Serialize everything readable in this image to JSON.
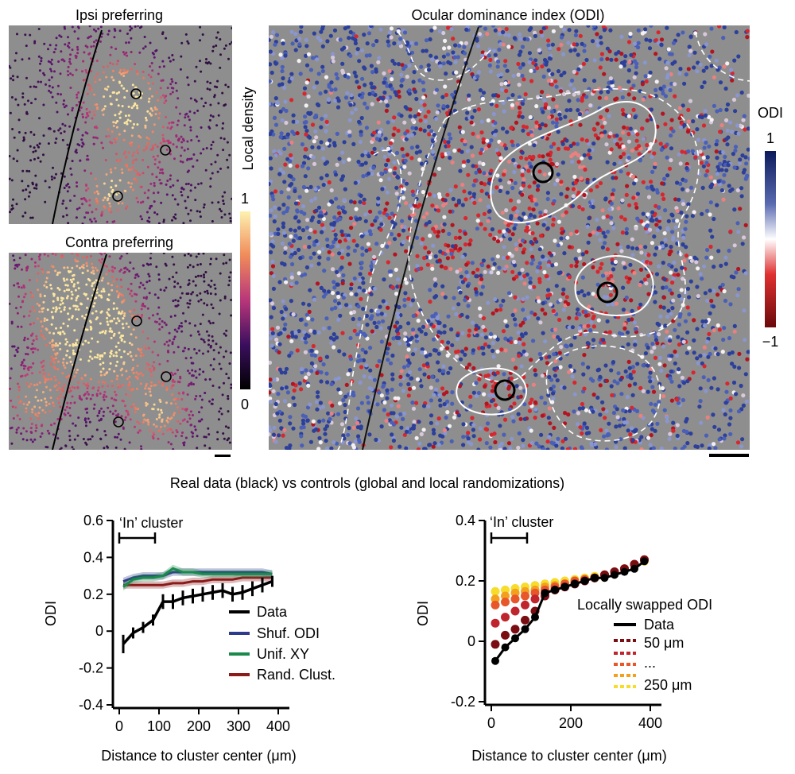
{
  "titles": {
    "ipsi": "Ipsi preferring",
    "contra": "Contra preferring",
    "odi_map": "Ocular dominance index (ODI)",
    "density_label": "Local density",
    "odi_label": "ODI",
    "density_max": "1",
    "density_min": "0",
    "odi_max": "1",
    "odi_min": "−1",
    "bottom_title": "Real data (black) vs controls (global and local randomizations)"
  },
  "colors": {
    "background_map": "#8e8e8e",
    "data": "#000000",
    "shuf_odi": "#2e3a8c",
    "unif_xy": "#1a8a4a",
    "rand_clust": "#8b1a1a",
    "swap_series": [
      "#7a0d12",
      "#c0242c",
      "#e8572a",
      "#f4a01f",
      "#f7dc2a"
    ]
  },
  "chart_data": [
    {
      "type": "line",
      "xlabel": "Distance to cluster center (μm)",
      "ylabel": "ODI",
      "xlim": [
        0,
        400
      ],
      "ylim": [
        -0.4,
        0.6
      ],
      "xticks": [
        "0",
        "100",
        "200",
        "300",
        "400"
      ],
      "yticks": [
        "-0.4",
        "-0.2",
        "0",
        "0.2",
        "0.4",
        "0.6"
      ],
      "annotation": "‘In’ cluster",
      "in_cluster_range": [
        0,
        90
      ],
      "legend_position": "bottom-right",
      "x": [
        10,
        35,
        60,
        85,
        110,
        135,
        160,
        185,
        210,
        235,
        260,
        285,
        310,
        335,
        360,
        385
      ],
      "series": [
        {
          "name": "Data",
          "values": [
            -0.07,
            -0.01,
            0.02,
            0.06,
            0.16,
            0.16,
            0.18,
            0.19,
            0.2,
            0.21,
            0.22,
            0.2,
            0.21,
            0.23,
            0.25,
            0.27
          ],
          "err": [
            0.05,
            0.03,
            0.03,
            0.03,
            0.04,
            0.04,
            0.04,
            0.04,
            0.04,
            0.04,
            0.04,
            0.04,
            0.04,
            0.04,
            0.04,
            0.03
          ]
        },
        {
          "name": "Shuf. ODI",
          "values": [
            0.27,
            0.29,
            0.3,
            0.3,
            0.3,
            0.32,
            0.32,
            0.32,
            0.32,
            0.32,
            0.32,
            0.32,
            0.32,
            0.32,
            0.32,
            0.31
          ]
        },
        {
          "name": "Unif. XY",
          "values": [
            0.24,
            0.28,
            0.29,
            0.29,
            0.3,
            0.34,
            0.32,
            0.32,
            0.31,
            0.31,
            0.31,
            0.31,
            0.31,
            0.31,
            0.31,
            0.31
          ]
        },
        {
          "name": "Rand. Clust.",
          "values": [
            0.25,
            0.25,
            0.25,
            0.25,
            0.25,
            0.26,
            0.26,
            0.27,
            0.27,
            0.28,
            0.28,
            0.28,
            0.29,
            0.29,
            0.29,
            0.29
          ]
        }
      ]
    },
    {
      "type": "line",
      "xlabel": "Distance to cluster center (μm)",
      "ylabel": "ODI",
      "xlim": [
        0,
        400
      ],
      "ylim": [
        -0.2,
        0.4
      ],
      "xticks": [
        "0",
        "200",
        "400"
      ],
      "yticks": [
        "-0.2",
        "0",
        "0.2",
        "0.4"
      ],
      "annotation": "‘In’ cluster",
      "in_cluster_range": [
        0,
        90
      ],
      "legend_title": "Locally swapped ODI",
      "legend_entries": [
        "Data",
        "50 μm",
        "...",
        "250 μm"
      ],
      "legend_position": "right",
      "x": [
        10,
        35,
        60,
        85,
        110,
        135,
        160,
        185,
        210,
        235,
        260,
        285,
        310,
        335,
        360,
        385
      ],
      "series": [
        {
          "name": "Data",
          "values": [
            -0.065,
            -0.02,
            0.01,
            0.04,
            0.08,
            0.16,
            0.17,
            0.18,
            0.19,
            0.2,
            0.21,
            0.21,
            0.22,
            0.23,
            0.24,
            0.265
          ]
        },
        {
          "name": "50 μm",
          "values": [
            -0.01,
            0.02,
            0.04,
            0.07,
            0.1,
            0.15,
            0.17,
            0.18,
            0.19,
            0.2,
            0.21,
            0.22,
            0.23,
            0.24,
            0.255,
            0.27
          ]
        },
        {
          "values": [
            0.06,
            0.08,
            0.1,
            0.12,
            0.14,
            0.16,
            0.17,
            0.18,
            0.19,
            0.2,
            0.21,
            0.22,
            0.23,
            0.24,
            0.255,
            0.27
          ]
        },
        {
          "values": [
            0.12,
            0.13,
            0.14,
            0.15,
            0.16,
            0.17,
            0.18,
            0.19,
            0.2,
            0.205,
            0.21,
            0.22,
            0.23,
            0.24,
            0.255,
            0.27
          ]
        },
        {
          "values": [
            0.14,
            0.15,
            0.16,
            0.165,
            0.17,
            0.18,
            0.185,
            0.19,
            0.2,
            0.205,
            0.21,
            0.22,
            0.23,
            0.24,
            0.255,
            0.27
          ]
        },
        {
          "name": "250 μm",
          "values": [
            0.165,
            0.17,
            0.175,
            0.18,
            0.185,
            0.19,
            0.195,
            0.2,
            0.205,
            0.21,
            0.215,
            0.22,
            0.23,
            0.24,
            0.255,
            0.265
          ]
        }
      ]
    }
  ]
}
